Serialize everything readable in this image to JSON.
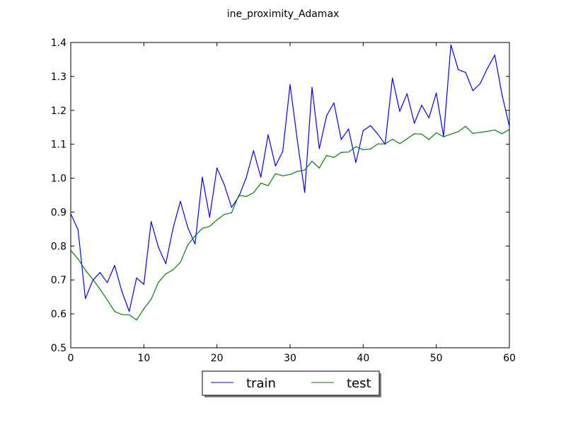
{
  "chart_data": {
    "type": "line",
    "title": "ine_proximity_Adamax",
    "xlabel": "",
    "ylabel": "",
    "xlim": [
      0,
      60
    ],
    "ylim": [
      0.5,
      1.4
    ],
    "xticks": [
      0,
      10,
      20,
      30,
      40,
      50,
      60
    ],
    "yticks": [
      0.5,
      0.6,
      0.7,
      0.8,
      0.9,
      1.0,
      1.1,
      1.2,
      1.3,
      1.4
    ],
    "xtick_labels": [
      "0",
      "10",
      "20",
      "30",
      "40",
      "50",
      "60"
    ],
    "ytick_labels": [
      "0.5",
      "0.6",
      "0.7",
      "0.8",
      "0.9",
      "1.0",
      "1.1",
      "1.2",
      "1.3",
      "1.4"
    ],
    "grid": false,
    "legend": {
      "placement": "bottom-center outside",
      "columns": 2
    },
    "series": [
      {
        "name": "train",
        "color": "#0000ff",
        "x": [
          0,
          1,
          2,
          3,
          4,
          5,
          6,
          7,
          8,
          9,
          10,
          11,
          12,
          13,
          14,
          15,
          16,
          17,
          18,
          19,
          20,
          21,
          22,
          23,
          24,
          25,
          26,
          27,
          28,
          29,
          30,
          31,
          32,
          33,
          34,
          35,
          36,
          37,
          38,
          39,
          40,
          41,
          42,
          43,
          44,
          45,
          46,
          47,
          48,
          49,
          50,
          51,
          52,
          53,
          54,
          55,
          56,
          57,
          58,
          59,
          60
        ],
        "values": [
          0.895,
          0.848,
          0.645,
          0.698,
          0.722,
          0.692,
          0.743,
          0.666,
          0.607,
          0.706,
          0.687,
          0.872,
          0.796,
          0.748,
          0.853,
          0.932,
          0.855,
          0.806,
          1.003,
          0.885,
          1.03,
          0.981,
          0.914,
          0.946,
          1.001,
          1.081,
          1.003,
          1.128,
          1.036,
          1.079,
          1.276,
          1.111,
          0.958,
          1.268,
          1.087,
          1.184,
          1.222,
          1.114,
          1.145,
          1.046,
          1.14,
          1.155,
          1.13,
          1.1,
          1.295,
          1.197,
          1.249,
          1.162,
          1.215,
          1.178,
          1.251,
          1.123,
          1.393,
          1.32,
          1.312,
          1.258,
          1.279,
          1.324,
          1.363,
          1.245,
          1.153
        ]
      },
      {
        "name": "test",
        "color": "#008000",
        "x": [
          0,
          1,
          2,
          3,
          4,
          5,
          6,
          7,
          8,
          9,
          10,
          11,
          12,
          13,
          14,
          15,
          16,
          17,
          18,
          19,
          20,
          21,
          22,
          23,
          24,
          25,
          26,
          27,
          28,
          29,
          30,
          31,
          32,
          33,
          34,
          35,
          36,
          37,
          38,
          39,
          40,
          41,
          42,
          43,
          44,
          45,
          46,
          47,
          48,
          49,
          50,
          51,
          52,
          53,
          54,
          55,
          56,
          57,
          58,
          59,
          60
        ],
        "values": [
          0.787,
          0.762,
          0.729,
          0.702,
          0.673,
          0.641,
          0.607,
          0.598,
          0.597,
          0.582,
          0.615,
          0.643,
          0.693,
          0.718,
          0.73,
          0.752,
          0.803,
          0.83,
          0.852,
          0.858,
          0.877,
          0.893,
          0.898,
          0.95,
          0.946,
          0.957,
          0.985,
          0.978,
          1.013,
          1.007,
          1.011,
          1.02,
          1.024,
          1.05,
          1.03,
          1.067,
          1.061,
          1.076,
          1.077,
          1.093,
          1.084,
          1.086,
          1.101,
          1.101,
          1.115,
          1.102,
          1.116,
          1.131,
          1.13,
          1.114,
          1.134,
          1.122,
          1.13,
          1.137,
          1.153,
          1.132,
          1.135,
          1.138,
          1.142,
          1.131,
          1.144
        ]
      }
    ]
  }
}
